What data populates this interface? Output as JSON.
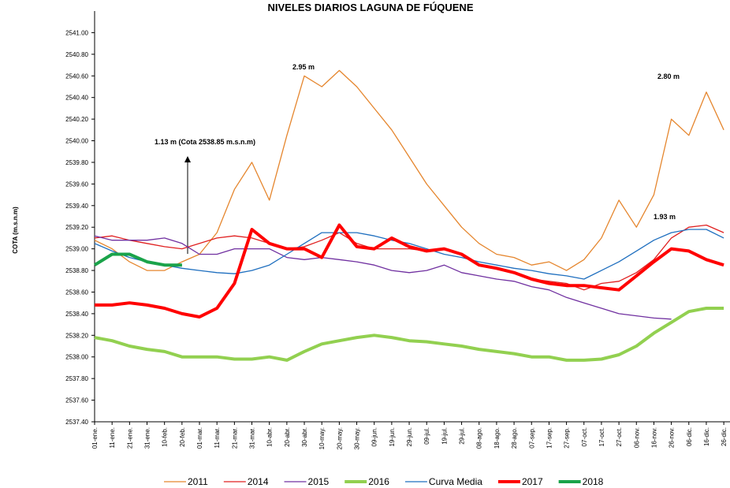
{
  "chart_data": {
    "type": "line",
    "title": "NIVELES DIARIOS LAGUNA DE FÚQUENE",
    "y_label": "COTA (m.s.n.m)",
    "categories": [
      "01-ene.",
      "11-ene.",
      "21-ene.",
      "31-ene.",
      "10-feb.",
      "20-feb.",
      "01-mar.",
      "11-mar.",
      "21-mar.",
      "31-mar.",
      "10-abr.",
      "20-abr.",
      "30-abr.",
      "10-may.",
      "20-may.",
      "30-may.",
      "09-jun.",
      "19-jun.",
      "29-jun.",
      "09-jul.",
      "19-jul.",
      "29-jul.",
      "08-ago.",
      "18-ago.",
      "28-ago.",
      "07-sep.",
      "17-sep.",
      "27-sep.",
      "07-oct.",
      "17-oct.",
      "27-oct.",
      "06-nov.",
      "16-nov.",
      "26-nov.",
      "06-dic.",
      "16-dic.",
      "26-dic."
    ],
    "ylim": [
      2537.4,
      2541.2
    ],
    "yticks": [
      {
        "value": 2537.4,
        "label": "2537.40"
      },
      {
        "value": 2537.6,
        "label": "2537.60"
      },
      {
        "value": 2537.8,
        "label": "2537.80"
      },
      {
        "value": 2538.0,
        "label": "2538.00"
      },
      {
        "value": 2538.2,
        "label": "2538.20"
      },
      {
        "value": 2538.4,
        "label": "2538.40"
      },
      {
        "value": 2538.6,
        "label": "2538.60"
      },
      {
        "value": 2538.8,
        "label": "2538.80"
      },
      {
        "value": 2539.0,
        "label": "2539.00"
      },
      {
        "value": 2539.2,
        "label": "2539.20"
      },
      {
        "value": 2539.4,
        "label": "2539.40"
      },
      {
        "value": 2539.6,
        "label": "2539.60"
      },
      {
        "value": 2539.8,
        "label": "2539.80"
      },
      {
        "value": 2540.0,
        "label": "2540.00"
      },
      {
        "value": 2540.2,
        "label": "2540.20"
      },
      {
        "value": 2540.4,
        "label": "2540.40"
      },
      {
        "value": 2540.6,
        "label": "2540.60"
      },
      {
        "value": 2540.8,
        "label": "2540.80"
      },
      {
        "value": 2541.0,
        "label": "2541.00"
      }
    ],
    "grid": false,
    "legend": "bottom",
    "series": [
      {
        "name": "2011",
        "color": "#e5862e",
        "line_width": 1.3,
        "values": [
          2539.08,
          2539.0,
          2538.88,
          2538.8,
          2538.8,
          2538.88,
          2538.95,
          2539.15,
          2539.55,
          2539.8,
          2539.45,
          2540.05,
          2540.6,
          2540.5,
          2540.65,
          2540.5,
          2540.3,
          2540.1,
          2539.85,
          2539.6,
          2539.4,
          2539.2,
          2539.05,
          2538.95,
          2538.92,
          2538.85,
          2538.88,
          2538.8,
          2538.9,
          2539.1,
          2539.45,
          2539.2,
          2539.5,
          2540.2,
          2540.05,
          2540.45,
          2540.1
        ]
      },
      {
        "name": "2014",
        "color": "#e02020",
        "line_width": 1.3,
        "values": [
          2539.1,
          2539.12,
          2539.08,
          2539.05,
          2539.02,
          2539.0,
          2539.05,
          2539.1,
          2539.12,
          2539.1,
          2539.05,
          2539.0,
          2539.02,
          2539.08,
          2539.15,
          2539.05,
          2539.0,
          2539.0,
          2539.0,
          2538.98,
          2539.0,
          2538.95,
          2538.85,
          2538.82,
          2538.78,
          2538.72,
          2538.7,
          2538.68,
          2538.62,
          2538.68,
          2538.7,
          2538.78,
          2538.9,
          2539.1,
          2539.2,
          2539.22,
          2539.15
        ]
      },
      {
        "name": "2015",
        "color": "#7030a0",
        "line_width": 1.3,
        "values": [
          2539.12,
          2539.08,
          2539.08,
          2539.08,
          2539.1,
          2539.05,
          2538.95,
          2538.95,
          2539.0,
          2539.0,
          2539.0,
          2538.92,
          2538.9,
          2538.92,
          2538.9,
          2538.88,
          2538.85,
          2538.8,
          2538.78,
          2538.8,
          2538.85,
          2538.78,
          2538.75,
          2538.72,
          2538.7,
          2538.65,
          2538.62,
          2538.55,
          2538.5,
          2538.45,
          2538.4,
          2538.38,
          2538.36,
          2538.35,
          null,
          null,
          null
        ]
      },
      {
        "name": "2016",
        "color": "#92d050",
        "line_width": 4,
        "values": [
          2538.18,
          2538.15,
          2538.1,
          2538.07,
          2538.05,
          2538.0,
          2538.0,
          2538.0,
          2537.98,
          2537.98,
          2538.0,
          2537.97,
          2538.05,
          2538.12,
          2538.15,
          2538.18,
          2538.2,
          2538.18,
          2538.15,
          2538.14,
          2538.12,
          2538.1,
          2538.07,
          2538.05,
          2538.03,
          2538.0,
          2538.0,
          2537.97,
          2537.97,
          2537.98,
          2538.02,
          2538.1,
          2538.22,
          2538.32,
          2538.42,
          2538.45,
          2538.45
        ]
      },
      {
        "name": "Curva Media",
        "color": "#1f6fbf",
        "line_width": 1.3,
        "values": [
          2539.05,
          2538.98,
          2538.92,
          2538.88,
          2538.85,
          2538.82,
          2538.8,
          2538.78,
          2538.77,
          2538.8,
          2538.85,
          2538.95,
          2539.05,
          2539.15,
          2539.15,
          2539.15,
          2539.12,
          2539.08,
          2539.05,
          2539.0,
          2538.95,
          2538.92,
          2538.88,
          2538.85,
          2538.82,
          2538.8,
          2538.77,
          2538.75,
          2538.72,
          2538.8,
          2538.88,
          2538.98,
          2539.08,
          2539.15,
          2539.18,
          2539.18,
          2539.1
        ]
      },
      {
        "name": "2017",
        "color": "#ff0000",
        "line_width": 4,
        "values": [
          2538.48,
          2538.48,
          2538.5,
          2538.48,
          2538.45,
          2538.4,
          2538.37,
          2538.45,
          2538.68,
          2539.18,
          2539.05,
          2539.0,
          2539.0,
          2538.92,
          2539.22,
          2539.02,
          2539.0,
          2539.1,
          2539.02,
          2538.98,
          2539.0,
          2538.95,
          2538.85,
          2538.82,
          2538.78,
          2538.72,
          2538.68,
          2538.66,
          2538.66,
          2538.64,
          2538.62,
          2538.75,
          2538.88,
          2539.0,
          2538.98,
          2538.9,
          2538.85
        ]
      },
      {
        "name": "2018",
        "color": "#1aa34a",
        "line_width": 4,
        "values": [
          2538.85,
          2538.95,
          2538.95,
          2538.88,
          2538.85,
          2538.85,
          null,
          null,
          null,
          null,
          null,
          null,
          null,
          null,
          null,
          null,
          null,
          null,
          null,
          null,
          null,
          null,
          null,
          null,
          null,
          null,
          null,
          null,
          null,
          null,
          null,
          null,
          null,
          null,
          null,
          null,
          null
        ]
      }
    ],
    "annotations": [
      "2.95 m",
      "1.13 m (Cota 2538.85 m.s.n.m)",
      "2.80 m",
      "1.93 m"
    ]
  }
}
